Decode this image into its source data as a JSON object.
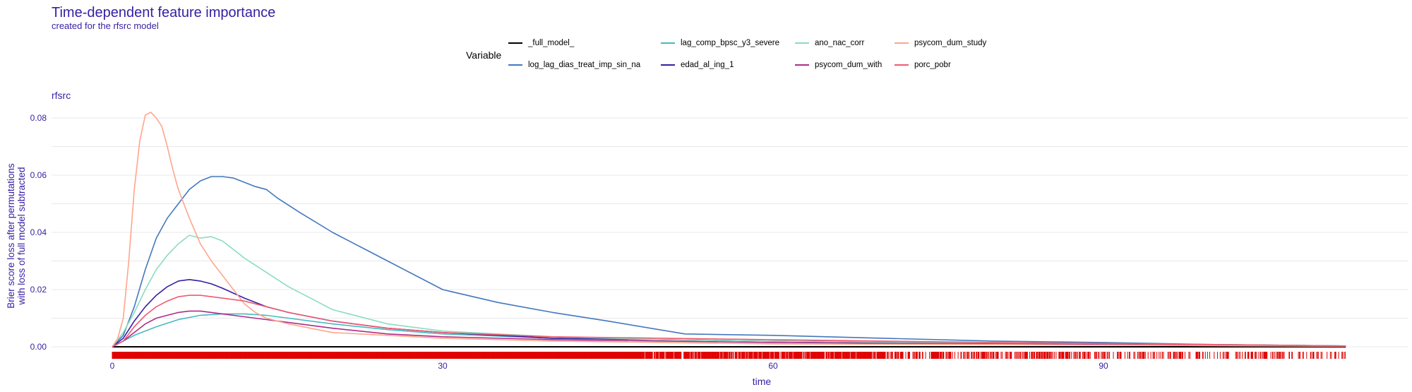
{
  "title": "Time-dependent feature importance",
  "subtitle": "created for the rfsrc model",
  "legend": {
    "title": "Variable",
    "items": [
      {
        "label": "_full_model_",
        "color": "#000000"
      },
      {
        "label": "log_lag_dias_treat_imp_sin_na",
        "color": "#4378bf"
      },
      {
        "label": "lag_comp_bpsc_y3_severe",
        "color": "#46bac2"
      },
      {
        "label": "edad_al_ing_1",
        "color": "#371ea3"
      },
      {
        "label": "ano_nac_corr",
        "color": "#8bdcbe"
      },
      {
        "label": "psycom_dum_with",
        "color": "#ae2c87"
      },
      {
        "label": "psycom_dum_study",
        "color": "#ffa58c"
      },
      {
        "label": "porc_pobr",
        "color": "#f05a71"
      }
    ]
  },
  "chart_data": {
    "type": "line",
    "panel_label": "rfsrc",
    "xlabel": "time",
    "ylabel": "Brier score loss after permutations\nwith loss of full model subtracted",
    "xlim": [
      0,
      112
    ],
    "ylim": [
      -0.003,
      0.085
    ],
    "xticks": [
      0,
      30,
      60,
      90
    ],
    "yticks": [
      0.0,
      0.02,
      0.04,
      0.06,
      0.08
    ],
    "ytick_labels": [
      "0.00",
      "0.02",
      "0.04",
      "0.06",
      "0.08"
    ],
    "grid": true,
    "rug": true,
    "series": [
      {
        "name": "_full_model_",
        "color": "#000000",
        "x": [
          0,
          112
        ],
        "y": [
          0,
          0
        ]
      },
      {
        "name": "log_lag_dias_treat_imp_sin_na",
        "color": "#4378bf",
        "x": [
          0,
          1,
          2,
          3,
          4,
          5,
          6,
          7,
          8,
          9,
          10,
          11,
          12,
          13,
          14,
          15,
          17,
          20,
          25,
          30,
          35,
          40,
          45,
          52,
          60,
          70,
          80,
          90,
          100,
          112
        ],
        "y": [
          0,
          0.004,
          0.014,
          0.027,
          0.038,
          0.045,
          0.05,
          0.055,
          0.058,
          0.0595,
          0.0595,
          0.059,
          0.0575,
          0.056,
          0.055,
          0.052,
          0.047,
          0.04,
          0.03,
          0.02,
          0.0155,
          0.012,
          0.009,
          0.0045,
          0.004,
          0.003,
          0.002,
          0.0015,
          0.0008,
          0.0003
        ]
      },
      {
        "name": "lag_comp_bpsc_y3_severe",
        "color": "#46bac2",
        "x": [
          0,
          2,
          4,
          6,
          8,
          10,
          12,
          14,
          16,
          20,
          25,
          30,
          40,
          50,
          60,
          80,
          100,
          112
        ],
        "y": [
          0,
          0.004,
          0.007,
          0.0095,
          0.011,
          0.0115,
          0.0115,
          0.011,
          0.01,
          0.008,
          0.006,
          0.0045,
          0.003,
          0.0025,
          0.002,
          0.0015,
          0.0008,
          0.0003
        ]
      },
      {
        "name": "edad_al_ing_1",
        "color": "#371ea3",
        "x": [
          0,
          1,
          2,
          3,
          4,
          5,
          6,
          7,
          8,
          9,
          10,
          12,
          14,
          16,
          20,
          25,
          30,
          40,
          50,
          60,
          80,
          100,
          112
        ],
        "y": [
          0,
          0.003,
          0.009,
          0.014,
          0.018,
          0.021,
          0.023,
          0.0235,
          0.023,
          0.022,
          0.0205,
          0.017,
          0.014,
          0.012,
          0.009,
          0.0065,
          0.005,
          0.003,
          0.0025,
          0.002,
          0.0012,
          0.0006,
          0.0002
        ]
      },
      {
        "name": "ano_nac_corr",
        "color": "#8bdcbe",
        "x": [
          0,
          1,
          2,
          3,
          4,
          5,
          6,
          7,
          8,
          9,
          10,
          11,
          12,
          14,
          16,
          18,
          20,
          25,
          30,
          40,
          50,
          60,
          80,
          100,
          112
        ],
        "y": [
          0,
          0.005,
          0.012,
          0.02,
          0.027,
          0.032,
          0.036,
          0.039,
          0.038,
          0.0385,
          0.037,
          0.034,
          0.031,
          0.026,
          0.021,
          0.017,
          0.013,
          0.008,
          0.0055,
          0.0035,
          0.0025,
          0.002,
          0.0012,
          0.0006,
          0.0002
        ]
      },
      {
        "name": "psycom_dum_with",
        "color": "#ae2c87",
        "x": [
          0,
          1,
          2,
          3,
          4,
          5,
          6,
          7,
          8,
          9,
          10,
          12,
          14,
          16,
          20,
          25,
          30,
          40,
          50,
          60,
          80,
          100,
          112
        ],
        "y": [
          0,
          0.002,
          0.005,
          0.008,
          0.01,
          0.011,
          0.012,
          0.0125,
          0.0125,
          0.012,
          0.0115,
          0.0105,
          0.0095,
          0.0085,
          0.0065,
          0.0045,
          0.0035,
          0.0025,
          0.002,
          0.0015,
          0.001,
          0.0005,
          0.0002
        ]
      },
      {
        "name": "psycom_dum_study",
        "color": "#ffa58c",
        "x": [
          0,
          0.5,
          1,
          1.5,
          2,
          2.5,
          3,
          3.5,
          4,
          4.5,
          5,
          5.5,
          6,
          7,
          8,
          9,
          10,
          11,
          12,
          13,
          14,
          16,
          18,
          20,
          25,
          30,
          40,
          50,
          60,
          80,
          100,
          112
        ],
        "y": [
          0,
          0.003,
          0.01,
          0.03,
          0.055,
          0.072,
          0.081,
          0.082,
          0.08,
          0.077,
          0.07,
          0.062,
          0.055,
          0.045,
          0.036,
          0.03,
          0.025,
          0.02,
          0.015,
          0.012,
          0.01,
          0.008,
          0.0065,
          0.005,
          0.004,
          0.003,
          0.002,
          0.0015,
          0.001,
          0.0008,
          0.0004,
          0.0002
        ]
      },
      {
        "name": "porc_pobr",
        "color": "#f05a71",
        "x": [
          0,
          1,
          2,
          3,
          4,
          5,
          6,
          7,
          8,
          9,
          10,
          12,
          14,
          16,
          20,
          25,
          30,
          40,
          50,
          60,
          80,
          100,
          112
        ],
        "y": [
          0,
          0.002,
          0.007,
          0.011,
          0.014,
          0.016,
          0.0175,
          0.018,
          0.018,
          0.0175,
          0.017,
          0.016,
          0.014,
          0.012,
          0.009,
          0.0065,
          0.005,
          0.0035,
          0.003,
          0.0025,
          0.0015,
          0.0008,
          0.0003
        ]
      }
    ]
  }
}
